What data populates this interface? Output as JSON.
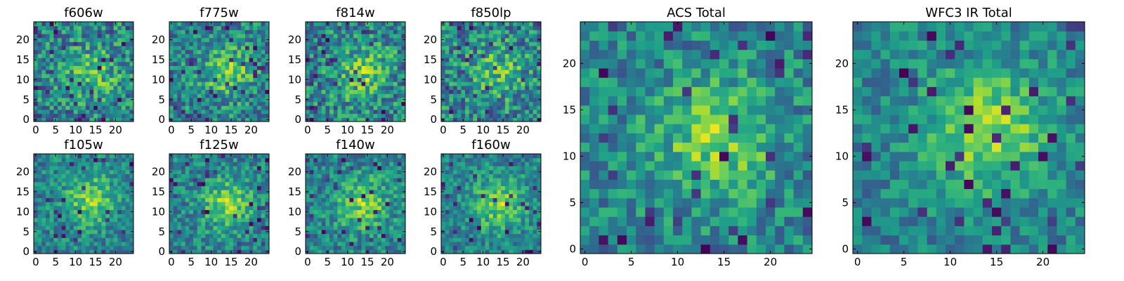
{
  "chart_data": [
    {
      "type": "heatmap",
      "title": "f606w",
      "xticks": [
        "0",
        "5",
        "10",
        "15",
        "20"
      ],
      "yticks": [
        "0",
        "5",
        "10",
        "15",
        "20"
      ],
      "grid_size": 25,
      "xlim": [
        -0.5,
        24.5
      ],
      "ylim": [
        -0.5,
        24.5
      ],
      "colormap": "viridis",
      "seed": 11,
      "blob_strength": 0.25,
      "noise": 0.55,
      "blob": [
        14,
        12
      ]
    },
    {
      "type": "heatmap",
      "title": "f775w",
      "xticks": [
        "0",
        "5",
        "10",
        "15",
        "20"
      ],
      "yticks": [
        "0",
        "5",
        "10",
        "15",
        "20"
      ],
      "grid_size": 25,
      "xlim": [
        -0.5,
        24.5
      ],
      "ylim": [
        -0.5,
        24.5
      ],
      "colormap": "viridis",
      "seed": 23,
      "blob_strength": 0.3,
      "noise": 0.5,
      "blob": [
        14,
        12
      ]
    },
    {
      "type": "heatmap",
      "title": "f814w",
      "xticks": [
        "0",
        "5",
        "10",
        "15",
        "20"
      ],
      "yticks": [
        "0",
        "5",
        "10",
        "15",
        "20"
      ],
      "grid_size": 25,
      "xlim": [
        -0.5,
        24.5
      ],
      "ylim": [
        -0.5,
        24.5
      ],
      "colormap": "viridis",
      "seed": 37,
      "blob_strength": 0.3,
      "noise": 0.55,
      "blob": [
        14,
        12
      ]
    },
    {
      "type": "heatmap",
      "title": "f850lp",
      "xticks": [
        "0",
        "5",
        "10",
        "15",
        "20"
      ],
      "yticks": [
        "0",
        "5",
        "10",
        "15",
        "20"
      ],
      "grid_size": 25,
      "xlim": [
        -0.5,
        24.5
      ],
      "ylim": [
        -0.5,
        24.5
      ],
      "colormap": "viridis",
      "seed": 41,
      "blob_strength": 0.25,
      "noise": 0.55,
      "blob": [
        14,
        12
      ]
    },
    {
      "type": "heatmap",
      "title": "f105w",
      "xticks": [
        "0",
        "5",
        "10",
        "15",
        "20"
      ],
      "yticks": [
        "0",
        "5",
        "10",
        "15",
        "20"
      ],
      "grid_size": 25,
      "xlim": [
        -0.5,
        24.5
      ],
      "ylim": [
        -0.5,
        24.5
      ],
      "colormap": "viridis",
      "seed": 53,
      "blob_strength": 0.35,
      "noise": 0.4,
      "blob": [
        14,
        13
      ]
    },
    {
      "type": "heatmap",
      "title": "f125w",
      "xticks": [
        "0",
        "5",
        "10",
        "15",
        "20"
      ],
      "yticks": [
        "0",
        "5",
        "10",
        "15",
        "20"
      ],
      "grid_size": 25,
      "xlim": [
        -0.5,
        24.5
      ],
      "ylim": [
        -0.5,
        24.5
      ],
      "colormap": "viridis",
      "seed": 67,
      "blob_strength": 0.35,
      "noise": 0.4,
      "blob": [
        14,
        12
      ]
    },
    {
      "type": "heatmap",
      "title": "f140w",
      "xticks": [
        "0",
        "5",
        "10",
        "15",
        "20"
      ],
      "yticks": [
        "0",
        "5",
        "10",
        "15",
        "20"
      ],
      "grid_size": 25,
      "xlim": [
        -0.5,
        24.5
      ],
      "ylim": [
        -0.5,
        24.5
      ],
      "colormap": "viridis",
      "seed": 71,
      "blob_strength": 0.35,
      "noise": 0.42,
      "blob": [
        14,
        12
      ]
    },
    {
      "type": "heatmap",
      "title": "f160w",
      "xticks": [
        "0",
        "5",
        "10",
        "15",
        "20"
      ],
      "yticks": [
        "0",
        "5",
        "10",
        "15",
        "20"
      ],
      "grid_size": 25,
      "xlim": [
        -0.5,
        24.5
      ],
      "ylim": [
        -0.5,
        24.5
      ],
      "colormap": "viridis",
      "seed": 83,
      "blob_strength": 0.35,
      "noise": 0.38,
      "blob": [
        14,
        12
      ]
    },
    {
      "type": "heatmap",
      "title": "ACS Total",
      "xticks": [
        "0",
        "5",
        "10",
        "15",
        "20"
      ],
      "yticks": [
        "0",
        "5",
        "10",
        "15",
        "20"
      ],
      "grid_size": 25,
      "xlim": [
        -0.5,
        24.5
      ],
      "ylim": [
        -0.5,
        24.5
      ],
      "colormap": "viridis",
      "seed": 97,
      "blob_strength": 0.35,
      "noise": 0.42,
      "blob": [
        14,
        12
      ]
    },
    {
      "type": "heatmap",
      "title": "WFC3 IR Total",
      "xticks": [
        "0",
        "5",
        "10",
        "15",
        "20"
      ],
      "yticks": [
        "0",
        "5",
        "10",
        "15",
        "20"
      ],
      "grid_size": 25,
      "xlim": [
        -0.5,
        24.5
      ],
      "ylim": [
        -0.5,
        24.5
      ],
      "colormap": "viridis",
      "seed": 131,
      "blob_strength": 0.4,
      "noise": 0.35,
      "blob": [
        14,
        13
      ]
    }
  ]
}
